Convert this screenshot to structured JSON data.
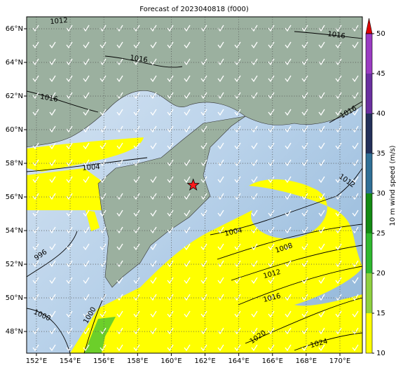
{
  "map": {
    "title": "Forecast of 2023040818 (f000)",
    "lon_range": [
      151.42,
      171.33
    ],
    "lat_range": [
      46.71,
      66.71
    ],
    "lon_ticks": [
      {
        "value": 152,
        "label": "152°E"
      },
      {
        "value": 154,
        "label": "154°E"
      },
      {
        "value": 156,
        "label": "156°E"
      },
      {
        "value": 158,
        "label": "158°E"
      },
      {
        "value": 160,
        "label": "160°E"
      },
      {
        "value": 162,
        "label": "162°E"
      },
      {
        "value": 164,
        "label": "164°E"
      },
      {
        "value": 166,
        "label": "166°E"
      },
      {
        "value": 168,
        "label": "168°E"
      },
      {
        "value": 170,
        "label": "170°E"
      }
    ],
    "lat_ticks": [
      {
        "value": 48,
        "label": "48°N"
      },
      {
        "value": 50,
        "label": "50°N"
      },
      {
        "value": 52,
        "label": "52°N"
      },
      {
        "value": 54,
        "label": "54°N"
      },
      {
        "value": 56,
        "label": "56°N"
      },
      {
        "value": 58,
        "label": "58°N"
      },
      {
        "value": 60,
        "label": "60°N"
      },
      {
        "value": 62,
        "label": "62°N"
      },
      {
        "value": 64,
        "label": "64°N"
      },
      {
        "value": 66,
        "label": "66°N"
      }
    ],
    "marker": {
      "lon": 161.3,
      "lat": 56.7
    },
    "isobar_labels": [
      1012,
      1016,
      1016,
      1016,
      1016,
      1004,
      1012,
      996,
      1004,
      1008,
      1012,
      1016,
      1000,
      1000,
      1020,
      1024
    ],
    "colorbar": {
      "label": "10 m wind speed (m/s)",
      "lim": [
        10,
        50
      ],
      "ticks": [
        10,
        15,
        20,
        25,
        30,
        35,
        40,
        45,
        50
      ],
      "colors": [
        "#ffff00",
        "#8fd13f",
        "#2eb82e",
        "#138a13",
        "#2f6f96",
        "#23305a",
        "#6a2fa0",
        "#9b3bc2"
      ],
      "extend_color": "#e00000"
    }
  }
}
